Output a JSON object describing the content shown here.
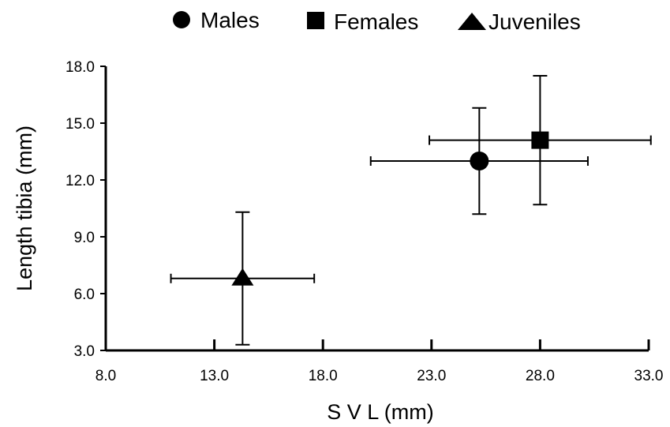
{
  "chart_data": {
    "type": "scatter",
    "title": "",
    "xlabel": "S V L (mm)",
    "ylabel": "Length tibia (mm)",
    "xlim": [
      8.0,
      33.0
    ],
    "ylim": [
      3.0,
      18.0
    ],
    "x_ticks": [
      "8.0",
      "13.0",
      "18.0",
      "23.0",
      "28.0",
      "33.0"
    ],
    "y_ticks": [
      "3.0",
      "6.0",
      "9.0",
      "12.0",
      "15.0",
      "18.0"
    ],
    "grid": false,
    "legend_position": "top-center",
    "series": [
      {
        "name": "Males",
        "marker": "circle",
        "color": "#000000",
        "x": 25.2,
        "y": 13.0,
        "x_err": 5.0,
        "y_err": 2.8
      },
      {
        "name": "Females",
        "marker": "square",
        "color": "#000000",
        "x": 28.0,
        "y": 14.1,
        "x_err": 5.1,
        "y_err": 3.4
      },
      {
        "name": "Juveniles",
        "marker": "triangle",
        "color": "#000000",
        "x": 14.3,
        "y": 6.8,
        "x_err": 3.3,
        "y_err": 3.5
      }
    ]
  }
}
